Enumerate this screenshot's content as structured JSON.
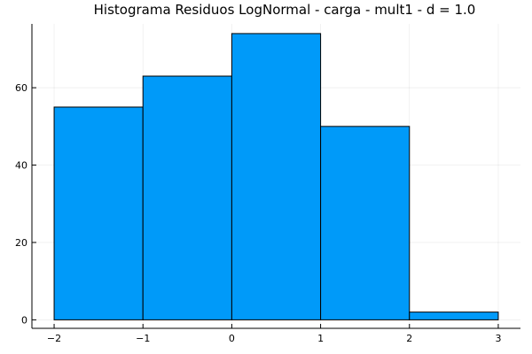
{
  "chart_data": {
    "type": "bar",
    "title": "Histograma Residuos LogNormal - carga - mult1 - d = 1.0",
    "xlabel": "",
    "ylabel": "",
    "bin_edges": [
      -2,
      -1,
      0,
      1,
      2,
      3
    ],
    "values": [
      55,
      63,
      74,
      50,
      2
    ],
    "xlim": [
      -2.25,
      3.25
    ],
    "ylim": [
      -2.2,
      76.5
    ],
    "xticks": [
      -2,
      -1,
      0,
      1,
      2,
      3
    ],
    "xtick_labels": [
      "−2",
      "−1",
      "0",
      "1",
      "2",
      "3"
    ],
    "yticks": [
      0,
      20,
      40,
      60
    ],
    "ytick_labels": [
      "0",
      "20",
      "40",
      "60"
    ],
    "grid": true,
    "legend": false,
    "bar_color": "#009af9",
    "edge_color": "#000000"
  }
}
